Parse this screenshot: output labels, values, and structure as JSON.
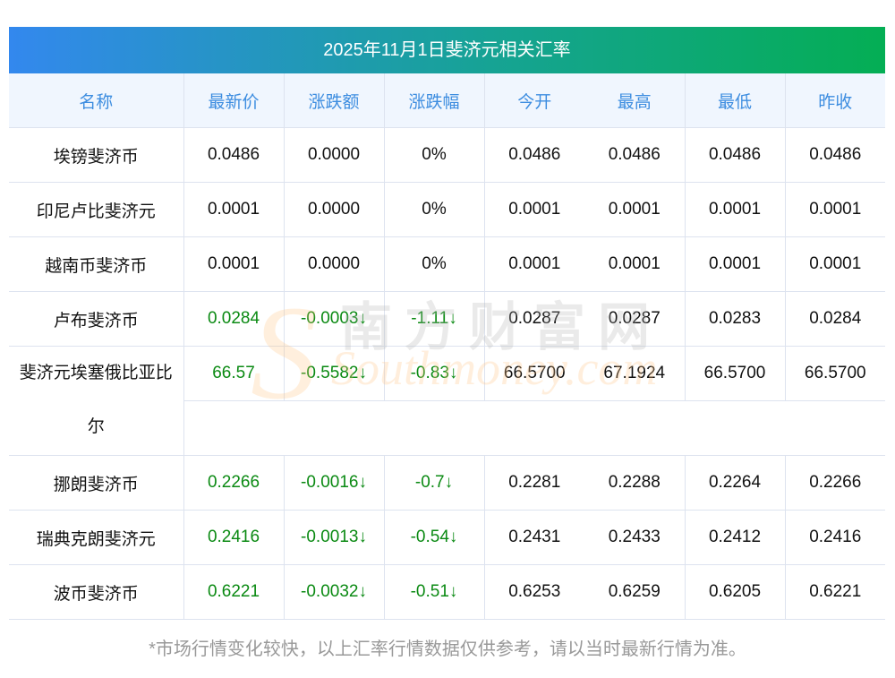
{
  "title": "2025年11月1日斐济元相关汇率",
  "headers": [
    "名称",
    "最新价",
    "涨跌额",
    "涨跌幅",
    "今开",
    "最高",
    "最低",
    "昨收"
  ],
  "rows": [
    {
      "name": "埃镑斐济币",
      "cells": [
        "0.0486",
        "0.0000",
        "0%",
        "0.0486",
        "0.0486",
        "0.0486",
        "0.0486"
      ],
      "down": false
    },
    {
      "name": "印尼卢比斐济元",
      "cells": [
        "0.0001",
        "0.0000",
        "0%",
        "0.0001",
        "0.0001",
        "0.0001",
        "0.0001"
      ],
      "down": false
    },
    {
      "name": "越南币斐济币",
      "cells": [
        "0.0001",
        "0.0000",
        "0%",
        "0.0001",
        "0.0001",
        "0.0001",
        "0.0001"
      ],
      "down": false
    },
    {
      "name": "卢布斐济币",
      "cells": [
        "0.0284",
        "-0.0003↓",
        "-1.11↓",
        "0.0287",
        "0.0287",
        "0.0283",
        "0.0284"
      ],
      "down": true
    },
    {
      "name": "斐济元埃塞俄比亚比尔",
      "cells": [
        "66.57",
        "-0.5582↓",
        "-0.83↓",
        "66.5700",
        "67.1924",
        "66.5700",
        "66.5700"
      ],
      "down": true,
      "tall": true
    },
    {
      "name": "挪朗斐济币",
      "cells": [
        "0.2266",
        "-0.0016↓",
        "-0.7↓",
        "0.2281",
        "0.2288",
        "0.2264",
        "0.2266"
      ],
      "down": true
    },
    {
      "name": "瑞典克朗斐济元",
      "cells": [
        "0.2416",
        "-0.0013↓",
        "-0.54↓",
        "0.2431",
        "0.2433",
        "0.2412",
        "0.2416"
      ],
      "down": true
    },
    {
      "name": "波币斐济币",
      "cells": [
        "0.6221",
        "-0.0032↓",
        "-0.51↓",
        "0.6253",
        "0.6259",
        "0.6205",
        "0.6221"
      ],
      "down": true
    }
  ],
  "watermark": {
    "cn": "南方财富网",
    "en": "Southmoney.com"
  },
  "note": "*市场行情变化较快，以上汇率行情数据仅供参考，请以当时最新行情为准。",
  "colors": {
    "header_text": "#3d8de0",
    "down": "#0b8a13",
    "gradient_start": "#3388ee",
    "gradient_end": "#04ae54"
  }
}
